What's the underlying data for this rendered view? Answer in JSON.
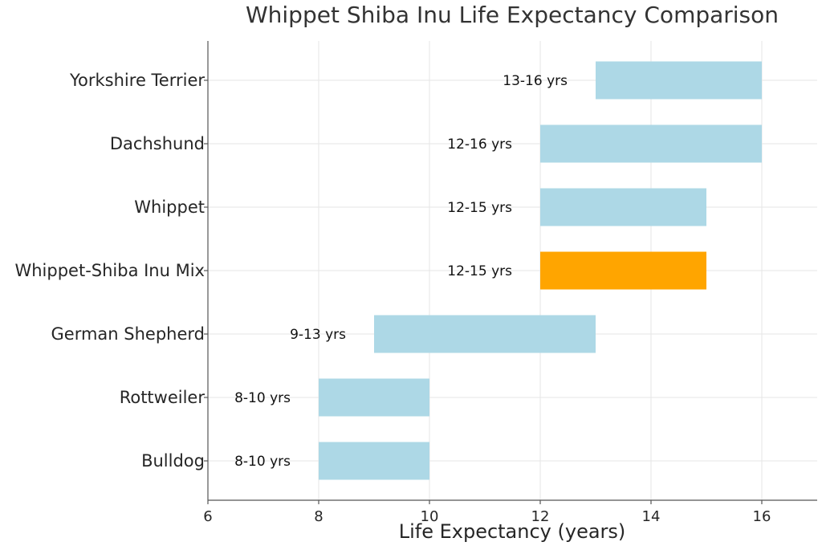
{
  "chart_data": {
    "type": "bar",
    "orientation": "horizontal-range",
    "title": "Whippet Shiba Inu Life Expectancy Comparison",
    "xlabel": "Life Expectancy (years)",
    "ylabel": "",
    "xlim": [
      6,
      17
    ],
    "xticks": [
      6,
      8,
      10,
      12,
      14,
      16
    ],
    "grid": true,
    "categories": [
      "Bulldog",
      "Rottweiler",
      "German Shepherd",
      "Whippet-Shiba Inu Mix",
      "Whippet",
      "Dachshund",
      "Yorkshire Terrier"
    ],
    "ranges": [
      [
        8,
        10
      ],
      [
        8,
        10
      ],
      [
        9,
        13
      ],
      [
        12,
        15
      ],
      [
        12,
        15
      ],
      [
        12,
        16
      ],
      [
        13,
        16
      ]
    ],
    "labels": [
      "8-10 yrs",
      "8-10 yrs",
      "9-13 yrs",
      "12-15 yrs",
      "12-15 yrs",
      "12-16 yrs",
      "13-16 yrs"
    ],
    "highlight_index": 3,
    "colors": {
      "default": "#add8e6",
      "highlight": "#ffa500"
    }
  }
}
